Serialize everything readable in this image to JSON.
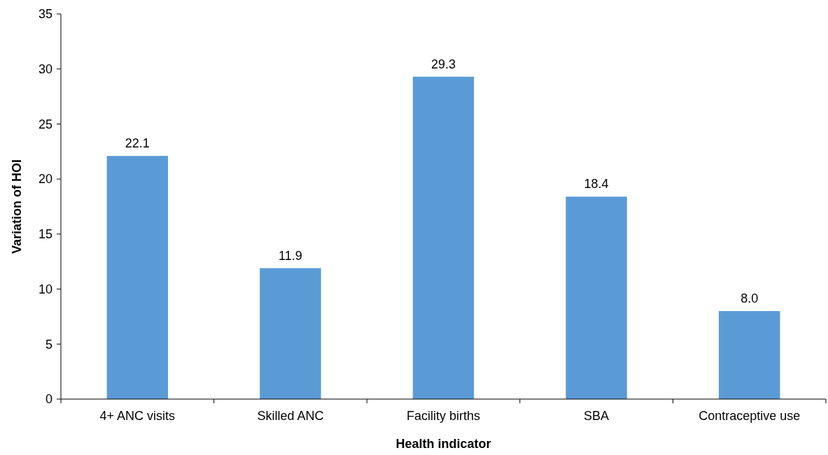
{
  "chart_data": {
    "type": "bar",
    "xlabel": "Health indicator",
    "ylabel": "Variation of HOI",
    "categories": [
      "4+ ANC visits",
      "Skilled ANC",
      "Facility births",
      "SBA",
      "Contraceptive use"
    ],
    "values": [
      22.1,
      11.9,
      29.3,
      18.4,
      8.0
    ],
    "value_labels": [
      "22.1",
      "11.9",
      "29.3",
      "18.4",
      "8.0"
    ],
    "color": "#5b9bd5",
    "ylim": [
      0,
      35
    ],
    "yticks": [
      0,
      5,
      10,
      15,
      20,
      25,
      30,
      35
    ],
    "grid": false
  }
}
